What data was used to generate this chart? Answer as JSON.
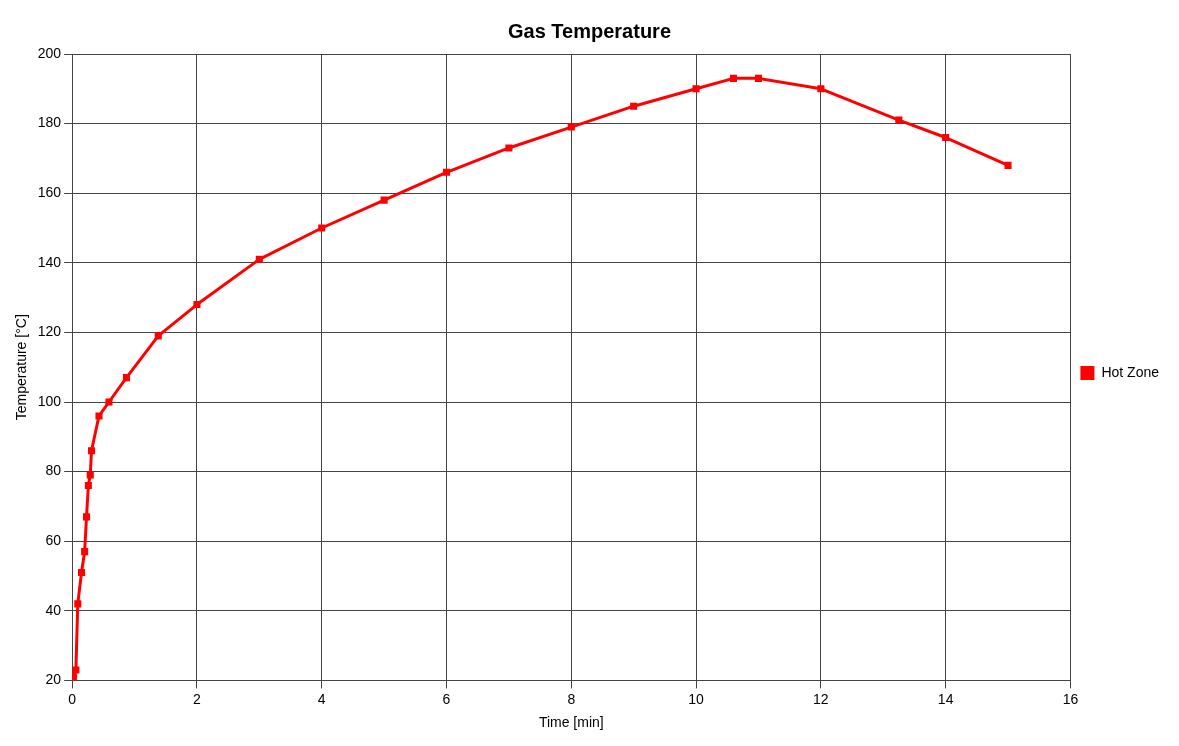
{
  "chart_data": {
    "type": "line",
    "title": "Gas Temperature",
    "xlabel": "Time [min]",
    "ylabel": "Temperature [°C]",
    "xlim": [
      0,
      16
    ],
    "xticks": [
      0,
      2,
      4,
      6,
      8,
      10,
      12,
      14,
      16
    ],
    "ylim": [
      20,
      200
    ],
    "yticks": [
      20,
      40,
      60,
      80,
      100,
      120,
      140,
      160,
      180,
      200
    ],
    "grid": true,
    "legend": "right",
    "marker": "square",
    "line_style": "solid",
    "series": [
      {
        "name": "Hot Zone",
        "color": "#ff0000",
        "x": [
          0,
          0.02,
          0.06,
          0.09,
          0.15,
          0.2,
          0.23,
          0.26,
          0.29,
          0.31,
          0.43,
          0.59,
          0.87,
          1.38,
          2,
          3,
          4,
          5,
          6,
          7,
          8,
          9,
          10,
          10.6,
          11,
          12,
          13.25,
          14,
          15
        ],
        "values": [
          20,
          21,
          23,
          42,
          51,
          57,
          67,
          76,
          79,
          86,
          96,
          100,
          107,
          119,
          128,
          141,
          150,
          158,
          166,
          173,
          179,
          185,
          190,
          193,
          193,
          190,
          181,
          176,
          168
        ]
      }
    ]
  }
}
